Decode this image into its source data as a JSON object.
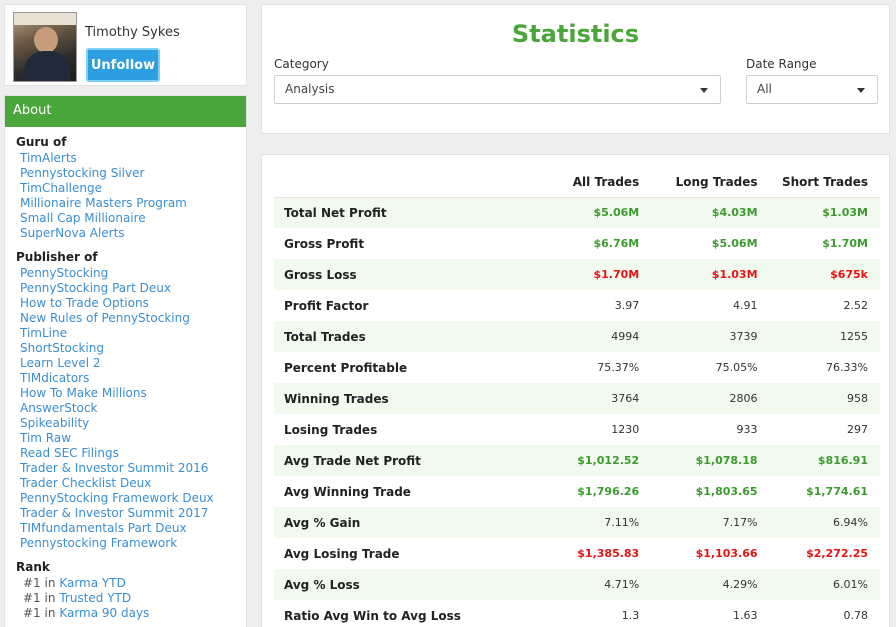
{
  "profile": {
    "name": "Timothy Sykes",
    "unfollow_label": "Unfollow"
  },
  "about": {
    "header": "About",
    "guru_title": "Guru of",
    "guru_of": [
      "TimAlerts",
      "Pennystocking Silver",
      "TimChallenge",
      "Millionaire Masters Program",
      "Small Cap Millionaire",
      "SuperNova Alerts"
    ],
    "publisher_title": "Publisher of",
    "publisher_of": [
      "PennyStocking",
      "PennyStocking Part Deux",
      "How to Trade Options",
      "New Rules of PennyStocking",
      "TimLine",
      "ShortStocking",
      "Learn Level 2",
      "TIMdicators",
      "How To Make Millions",
      "AnswerStock",
      "Spikeability",
      "Tim Raw",
      "Read SEC Filings",
      "Trader & Investor Summit 2016",
      "Trader Checklist Deux",
      "PennyStocking Framework Deux",
      "Trader & Investor Summit 2017",
      "TIMfundamentals Part Deux",
      "Pennystocking Framework"
    ],
    "rank_title": "Rank",
    "rank": [
      {
        "position": "#1",
        "sep": "in",
        "label": "Karma YTD"
      },
      {
        "position": "#1",
        "sep": "in",
        "label": "Trusted YTD"
      },
      {
        "position": "#1",
        "sep": "in",
        "label": "Karma 90 days"
      }
    ]
  },
  "statistics": {
    "title": "Statistics",
    "category_label": "Category",
    "category_value": "Analysis",
    "date_range_label": "Date Range",
    "date_range_value": "All"
  },
  "table": {
    "headers": [
      "",
      "All Trades",
      "Long Trades",
      "Short Trades"
    ],
    "rows": [
      {
        "metric": "Total Net Profit",
        "all": "$5.06M",
        "long": "$4.03M",
        "short": "$1.03M",
        "tone": [
          "pos",
          "pos",
          "pos"
        ]
      },
      {
        "metric": "Gross Profit",
        "all": "$6.76M",
        "long": "$5.06M",
        "short": "$1.70M",
        "tone": [
          "pos",
          "pos",
          "pos"
        ]
      },
      {
        "metric": "Gross Loss",
        "all": "$1.70M",
        "long": "$1.03M",
        "short": "$675k",
        "tone": [
          "neg",
          "neg",
          "neg"
        ]
      },
      {
        "metric": "Profit Factor",
        "all": "3.97",
        "long": "4.91",
        "short": "2.52",
        "tone": [
          "",
          "",
          ""
        ]
      },
      {
        "metric": "Total Trades",
        "all": "4994",
        "long": "3739",
        "short": "1255",
        "tone": [
          "",
          "",
          ""
        ]
      },
      {
        "metric": "Percent Profitable",
        "all": "75.37%",
        "long": "75.05%",
        "short": "76.33%",
        "tone": [
          "",
          "",
          ""
        ]
      },
      {
        "metric": "Winning Trades",
        "all": "3764",
        "long": "2806",
        "short": "958",
        "tone": [
          "",
          "",
          ""
        ]
      },
      {
        "metric": "Losing Trades",
        "all": "1230",
        "long": "933",
        "short": "297",
        "tone": [
          "",
          "",
          ""
        ]
      },
      {
        "metric": "Avg Trade Net Profit",
        "all": "$1,012.52",
        "long": "$1,078.18",
        "short": "$816.91",
        "tone": [
          "pos",
          "pos",
          "pos"
        ]
      },
      {
        "metric": "Avg Winning Trade",
        "all": "$1,796.26",
        "long": "$1,803.65",
        "short": "$1,774.61",
        "tone": [
          "pos",
          "pos",
          "pos"
        ]
      },
      {
        "metric": "Avg % Gain",
        "all": "7.11%",
        "long": "7.17%",
        "short": "6.94%",
        "tone": [
          "",
          "",
          ""
        ]
      },
      {
        "metric": "Avg Losing Trade",
        "all": "$1,385.83",
        "long": "$1,103.66",
        "short": "$2,272.25",
        "tone": [
          "neg",
          "neg",
          "neg"
        ]
      },
      {
        "metric": "Avg % Loss",
        "all": "4.71%",
        "long": "4.29%",
        "short": "6.01%",
        "tone": [
          "",
          "",
          ""
        ]
      },
      {
        "metric": "Ratio Avg Win to Avg Loss",
        "all": "1.3",
        "long": "1.63",
        "short": "0.78",
        "tone": [
          "",
          "",
          ""
        ]
      }
    ]
  },
  "colors": {
    "accent_green": "#4aa63a",
    "positive": "#3c9a2e",
    "negative": "#e41414",
    "link": "#3a8fd0",
    "button": "#2d9fe0"
  }
}
